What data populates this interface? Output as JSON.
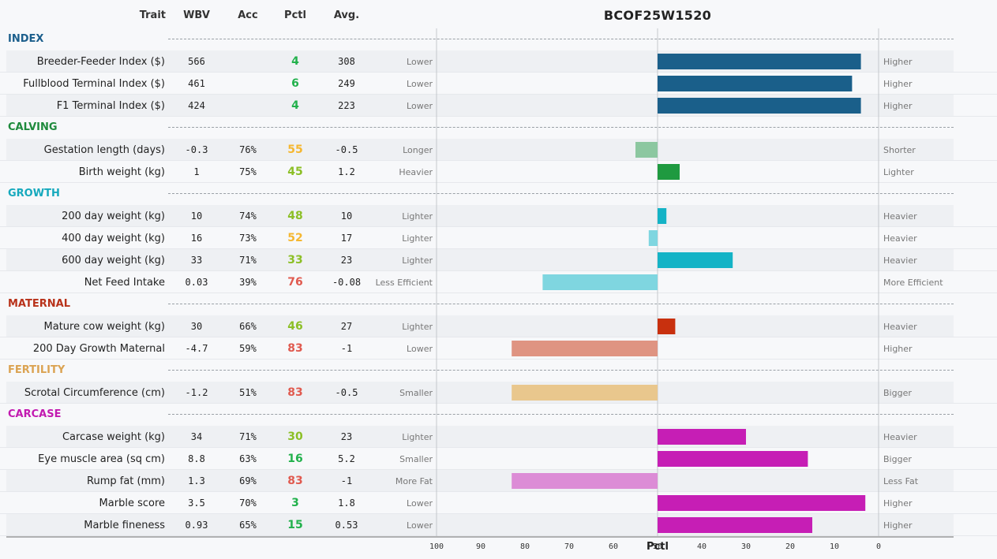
{
  "header": {
    "trait": "Trait",
    "wbv": "WBV",
    "acc": "Acc",
    "pctl": "Pctl",
    "avg": "Avg."
  },
  "colors": {
    "pctl_good": "#22b14c",
    "pctl_mid_low": "#8cbf26",
    "pctl_mid": "#f5b731",
    "pctl_bad": "#e05a4f"
  },
  "chart_data": {
    "type": "bar",
    "title": "BCOF25W1520",
    "xlabel": "Pctl",
    "xlim": [
      100,
      0
    ],
    "xticks": [
      100,
      90,
      80,
      70,
      60,
      50,
      40,
      30,
      20,
      10,
      0
    ],
    "baseline": 50,
    "sections": [
      {
        "name": "INDEX",
        "color": "#1c5f8c",
        "traits": [
          {
            "name": "Breeder-Feeder Index ($)",
            "wbv": "566",
            "acc": "",
            "pctl": 4,
            "avg": "308",
            "low": "Lower",
            "high": "Higher",
            "bar_color": "#1a5f8a"
          },
          {
            "name": "Fullblood Terminal Index ($)",
            "wbv": "461",
            "acc": "",
            "pctl": 6,
            "avg": "249",
            "low": "Lower",
            "high": "Higher",
            "bar_color": "#1a5f8a"
          },
          {
            "name": "F1 Terminal Index ($)",
            "wbv": "424",
            "acc": "",
            "pctl": 4,
            "avg": "223",
            "low": "Lower",
            "high": "Higher",
            "bar_color": "#1a5f8a"
          }
        ]
      },
      {
        "name": "CALVING",
        "color": "#1e8a3c",
        "traits": [
          {
            "name": "Gestation length (days)",
            "wbv": "-0.3",
            "acc": "76%",
            "pctl": 55,
            "avg": "-0.5",
            "low": "Longer",
            "high": "Shorter",
            "bar_color": "#8cc7a0"
          },
          {
            "name": "Birth weight (kg)",
            "wbv": "1",
            "acc": "75%",
            "pctl": 45,
            "avg": "1.2",
            "low": "Heavier",
            "high": "Lighter",
            "bar_color": "#1f9a40"
          }
        ]
      },
      {
        "name": "GROWTH",
        "color": "#16a9bd",
        "traits": [
          {
            "name": "200 day weight (kg)",
            "wbv": "10",
            "acc": "74%",
            "pctl": 48,
            "avg": "10",
            "low": "Lighter",
            "high": "Heavier",
            "bar_color": "#14b3c6"
          },
          {
            "name": "400 day weight (kg)",
            "wbv": "16",
            "acc": "73%",
            "pctl": 52,
            "avg": "17",
            "low": "Lighter",
            "high": "Heavier",
            "bar_color": "#7fd6e0"
          },
          {
            "name": "600 day weight (kg)",
            "wbv": "33",
            "acc": "71%",
            "pctl": 33,
            "avg": "23",
            "low": "Lighter",
            "high": "Heavier",
            "bar_color": "#14b3c6"
          },
          {
            "name": "Net Feed Intake",
            "wbv": "0.03",
            "acc": "39%",
            "pctl": 76,
            "avg": "-0.08",
            "low": "Less Efficient",
            "high": "More Efficient",
            "bar_color": "#7fd6e0"
          }
        ]
      },
      {
        "name": "MATERNAL",
        "color": "#b8321a",
        "traits": [
          {
            "name": "Mature cow weight (kg)",
            "wbv": "30",
            "acc": "66%",
            "pctl": 46,
            "avg": "27",
            "low": "Lighter",
            "high": "Heavier",
            "bar_color": "#c8300e"
          },
          {
            "name": "200 Day Growth Maternal",
            "wbv": "-4.7",
            "acc": "59%",
            "pctl": 83,
            "avg": "-1",
            "low": "Lower",
            "high": "Higher",
            "bar_color": "#df9482"
          }
        ]
      },
      {
        "name": "FERTILITY",
        "color": "#dba352",
        "traits": [
          {
            "name": "Scrotal Circumference (cm)",
            "wbv": "-1.2",
            "acc": "51%",
            "pctl": 83,
            "avg": "-0.5",
            "low": "Smaller",
            "high": "Bigger",
            "bar_color": "#e9c78d"
          }
        ]
      },
      {
        "name": "CARCASE",
        "color": "#c21ab0",
        "traits": [
          {
            "name": "Carcase weight (kg)",
            "wbv": "34",
            "acc": "71%",
            "pctl": 30,
            "avg": "23",
            "low": "Lighter",
            "high": "Heavier",
            "bar_color": "#c61eb5"
          },
          {
            "name": "Eye muscle area (sq cm)",
            "wbv": "8.8",
            "acc": "63%",
            "pctl": 16,
            "avg": "5.2",
            "low": "Smaller",
            "high": "Bigger",
            "bar_color": "#c61eb5"
          },
          {
            "name": "Rump fat (mm)",
            "wbv": "1.3",
            "acc": "69%",
            "pctl": 83,
            "avg": "-1",
            "low": "More Fat",
            "high": "Less Fat",
            "bar_color": "#dc8cd6"
          },
          {
            "name": "Marble score",
            "wbv": "3.5",
            "acc": "70%",
            "pctl": 3,
            "avg": "1.8",
            "low": "Lower",
            "high": "Higher",
            "bar_color": "#c61eb5"
          },
          {
            "name": "Marble fineness",
            "wbv": "0.93",
            "acc": "65%",
            "pctl": 15,
            "avg": "0.53",
            "low": "Lower",
            "high": "Higher",
            "bar_color": "#c61eb5"
          }
        ]
      }
    ]
  }
}
